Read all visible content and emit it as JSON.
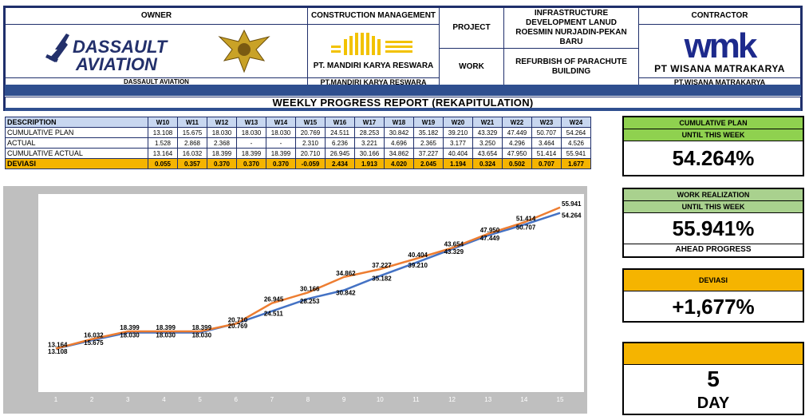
{
  "header": {
    "owner_label": "OWNER",
    "owner_logo_text_1": "DASSAULT",
    "owner_logo_text_2": "AVIATION",
    "owner_name": "DASSAULT AVIATION",
    "cm_label": "CONSTRUCTION MANAGEMENT",
    "cm_logo_text": "PT. MANDIRI KARYA RESWARA",
    "cm_name": "PT.MANDIRI KARYA RESWARA",
    "project_label": "PROJECT",
    "project_value": "INFRASTRUCTURE DEVELOPMENT LANUD ROESMIN NURJADIN-PEKAN BARU",
    "work_label": "WORK",
    "work_value": "REFURBISH OF PARACHUTE BUILDING",
    "contractor_label": "CONTRACTOR",
    "contractor_logo_text": "wmk",
    "contractor_logo_sub": "PT WISANA MATRAKARYA",
    "contractor_name": "PT.WISANA MATRAKARYA",
    "report_title": "WEEKLY PROGRESS REPORT (REKAPITULATION)"
  },
  "table": {
    "desc_header": "DESCRIPTION",
    "weeks": [
      "W10",
      "W11",
      "W12",
      "W13",
      "W14",
      "W15",
      "W16",
      "W17",
      "W18",
      "W19",
      "W20",
      "W21",
      "W22",
      "W23",
      "W24"
    ],
    "rows": [
      {
        "label": "CUMULATIVE PLAN",
        "values": [
          "13.108",
          "15.675",
          "18.030",
          "18.030",
          "18.030",
          "20.769",
          "24.511",
          "28.253",
          "30.842",
          "35.182",
          "39.210",
          "43.329",
          "47.449",
          "50.707",
          "54.264"
        ]
      },
      {
        "label": "ACTUAL",
        "values": [
          "1.528",
          "2.868",
          "2.368",
          "-",
          "-",
          "2.310",
          "6.236",
          "3.221",
          "4.696",
          "2.365",
          "3.177",
          "3.250",
          "4.296",
          "3.464",
          "4.526"
        ]
      },
      {
        "label": "CUMULATIVE ACTUAL",
        "values": [
          "13.164",
          "16.032",
          "18.399",
          "18.399",
          "18.399",
          "20.710",
          "26.945",
          "30.166",
          "34.862",
          "37.227",
          "40.404",
          "43.654",
          "47.950",
          "51.414",
          "55.941"
        ]
      },
      {
        "label": "DEVIASI",
        "values": [
          "0.055",
          "0.357",
          "0.370",
          "0.370",
          "0.370",
          "-0.059",
          "2.434",
          "1.913",
          "4.020",
          "2.045",
          "1.194",
          "0.324",
          "0.502",
          "0.707",
          "1.677"
        ]
      }
    ]
  },
  "chart_data": {
    "type": "line",
    "categories": [
      "1",
      "2",
      "3",
      "4",
      "5",
      "6",
      "7",
      "8",
      "9",
      "10",
      "11",
      "12",
      "13",
      "14",
      "15"
    ],
    "series": [
      {
        "color": "#4472c4",
        "values": [
          13.108,
          15.675,
          18.03,
          18.03,
          18.03,
          20.769,
          24.511,
          28.253,
          30.842,
          35.182,
          39.21,
          43.329,
          47.449,
          50.707,
          54.264
        ]
      },
      {
        "color": "#ed7d31",
        "values": [
          13.164,
          16.032,
          18.399,
          18.399,
          18.399,
          20.71,
          26.945,
          30.166,
          34.862,
          37.227,
          40.404,
          43.654,
          47.95,
          51.414,
          55.941
        ]
      }
    ],
    "data_labels": [
      [
        "13.108",
        "15.675",
        "18.030",
        "18.030",
        "18.030",
        "20.769",
        "24.511",
        "28.253",
        "30.842",
        "35.182",
        "39.210",
        "43.329",
        "47.449",
        "50.707",
        "54.264"
      ],
      [
        "13.164",
        "16.032",
        "18.399",
        "18.399",
        "18.399",
        "20.710",
        "26.945",
        "30.166",
        "34.862",
        "37.227",
        "40.404",
        "43.654",
        "47.950",
        "51.414",
        "55.941"
      ]
    ],
    "ylim": [
      0,
      60
    ],
    "grid": false,
    "legend": "none"
  },
  "cards": {
    "plan_head_1": "CUMULATIVE PLAN",
    "plan_head_2": "UNTIL THIS WEEK",
    "plan_value": "54.264%",
    "real_head_1": "WORK REALIZATION",
    "real_head_2": "UNTIL THIS WEEK",
    "real_value": "55.941%",
    "real_foot": "AHEAD PROGRESS",
    "dev_head": "DEVIASI",
    "dev_value": "+1,677%",
    "day_value": "5",
    "day_label": "DAY"
  }
}
